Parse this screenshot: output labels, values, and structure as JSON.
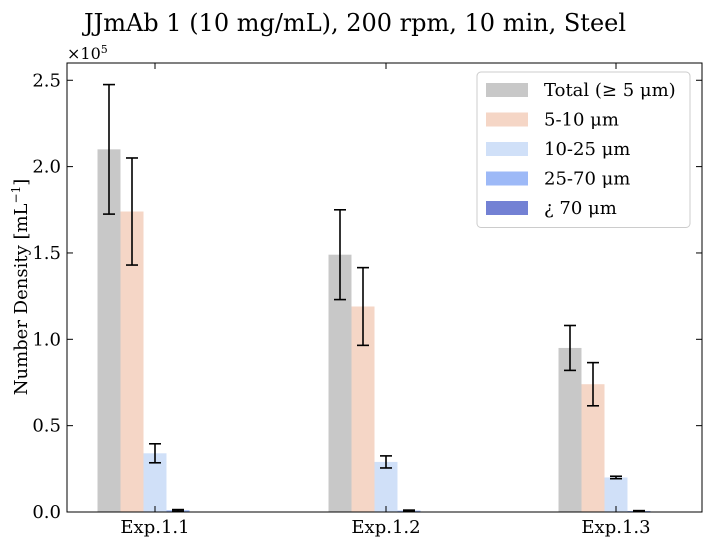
{
  "chart_data": {
    "type": "bar",
    "title": "JJmAb 1 (10 mg/mL), 200 rpm, 10 min, Steel",
    "xlabel": "",
    "ylabel": "Number Density [mL",
    "ylabel_superscript": "−1",
    "ylabel_suffix": "]",
    "y_multiplier_base": "×10",
    "y_multiplier_exp": "5",
    "ylim": [
      0,
      2.6
    ],
    "yticks": [
      0.0,
      0.5,
      1.0,
      1.5,
      2.0,
      2.5
    ],
    "ytick_labels": [
      "0.0",
      "0.5",
      "1.0",
      "1.5",
      "2.0",
      "2.5"
    ],
    "categories": [
      "Exp.1.1",
      "Exp.1.2",
      "Exp.1.3"
    ],
    "grid": false,
    "legend_position": "top-right",
    "series": [
      {
        "name": "Total (≥ 5 μm)",
        "color": "#c8c8c8",
        "values": [
          2.1,
          1.49,
          0.95
        ],
        "errors": [
          0.375,
          0.26,
          0.13
        ]
      },
      {
        "name": "5-10 μm",
        "color": "#f5d6c6",
        "values": [
          1.74,
          1.19,
          0.74
        ],
        "errors": [
          0.31,
          0.225,
          0.125
        ]
      },
      {
        "name": "10-25 μm",
        "color": "#d0e0f8",
        "values": [
          0.34,
          0.29,
          0.2
        ],
        "errors": [
          0.055,
          0.035,
          0.007
        ]
      },
      {
        "name": "25-70 μm",
        "color": "#9db9f7",
        "values": [
          0.01,
          0.008,
          0.006
        ],
        "errors": [
          0.004,
          0.003,
          0.002
        ]
      },
      {
        "name": "¿ 70 μm",
        "color": "#7381d4",
        "values": [
          0.002,
          0.002,
          0.001
        ],
        "errors": [
          0,
          0,
          0
        ]
      }
    ]
  }
}
